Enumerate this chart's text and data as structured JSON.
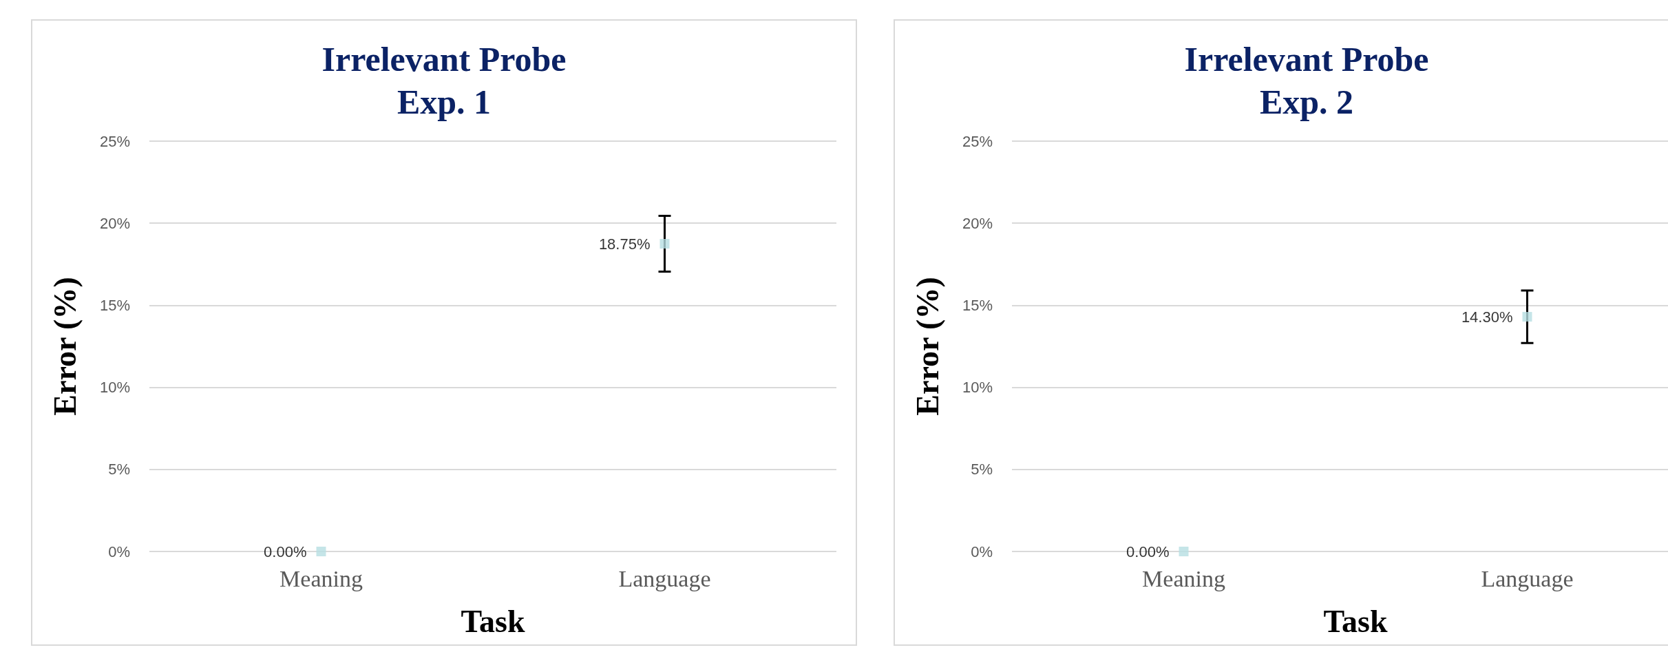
{
  "chart_data": [
    {
      "type": "scatter",
      "title": "Irrelevant Probe\nExp. 1",
      "xlabel": "Task",
      "ylabel": "Error (%)",
      "categories": [
        "Meaning",
        "Language"
      ],
      "series": [
        {
          "color": "#b7dfe2",
          "values": [
            0,
            18.75
          ],
          "errors": [
            null,
            1.7
          ],
          "value_labels": [
            "0.00%",
            "18.75%"
          ]
        }
      ],
      "ylim": [
        0,
        25
      ],
      "yticks": [
        {
          "value": 0,
          "label": "0%"
        },
        {
          "value": 5,
          "label": "5%"
        },
        {
          "value": 10,
          "label": "10%"
        },
        {
          "value": 15,
          "label": "15%"
        },
        {
          "value": 20,
          "label": "20%"
        },
        {
          "value": 25,
          "label": "25%"
        }
      ],
      "grid": "y",
      "marker": "square"
    },
    {
      "type": "scatter",
      "title": "Irrelevant Probe\nExp. 2",
      "xlabel": "Task",
      "ylabel": "Error (%)",
      "categories": [
        "Meaning",
        "Language"
      ],
      "series": [
        {
          "color": "#b7dfe2",
          "values": [
            0,
            14.3
          ],
          "errors": [
            null,
            1.6
          ],
          "value_labels": [
            "0.00%",
            "14.30%"
          ]
        }
      ],
      "ylim": [
        0,
        25
      ],
      "yticks": [
        {
          "value": 0,
          "label": "0%"
        },
        {
          "value": 5,
          "label": "5%"
        },
        {
          "value": 10,
          "label": "10%"
        },
        {
          "value": 15,
          "label": "15%"
        },
        {
          "value": 20,
          "label": "20%"
        },
        {
          "value": 25,
          "label": "25%"
        }
      ],
      "grid": "y",
      "marker": "square"
    }
  ]
}
